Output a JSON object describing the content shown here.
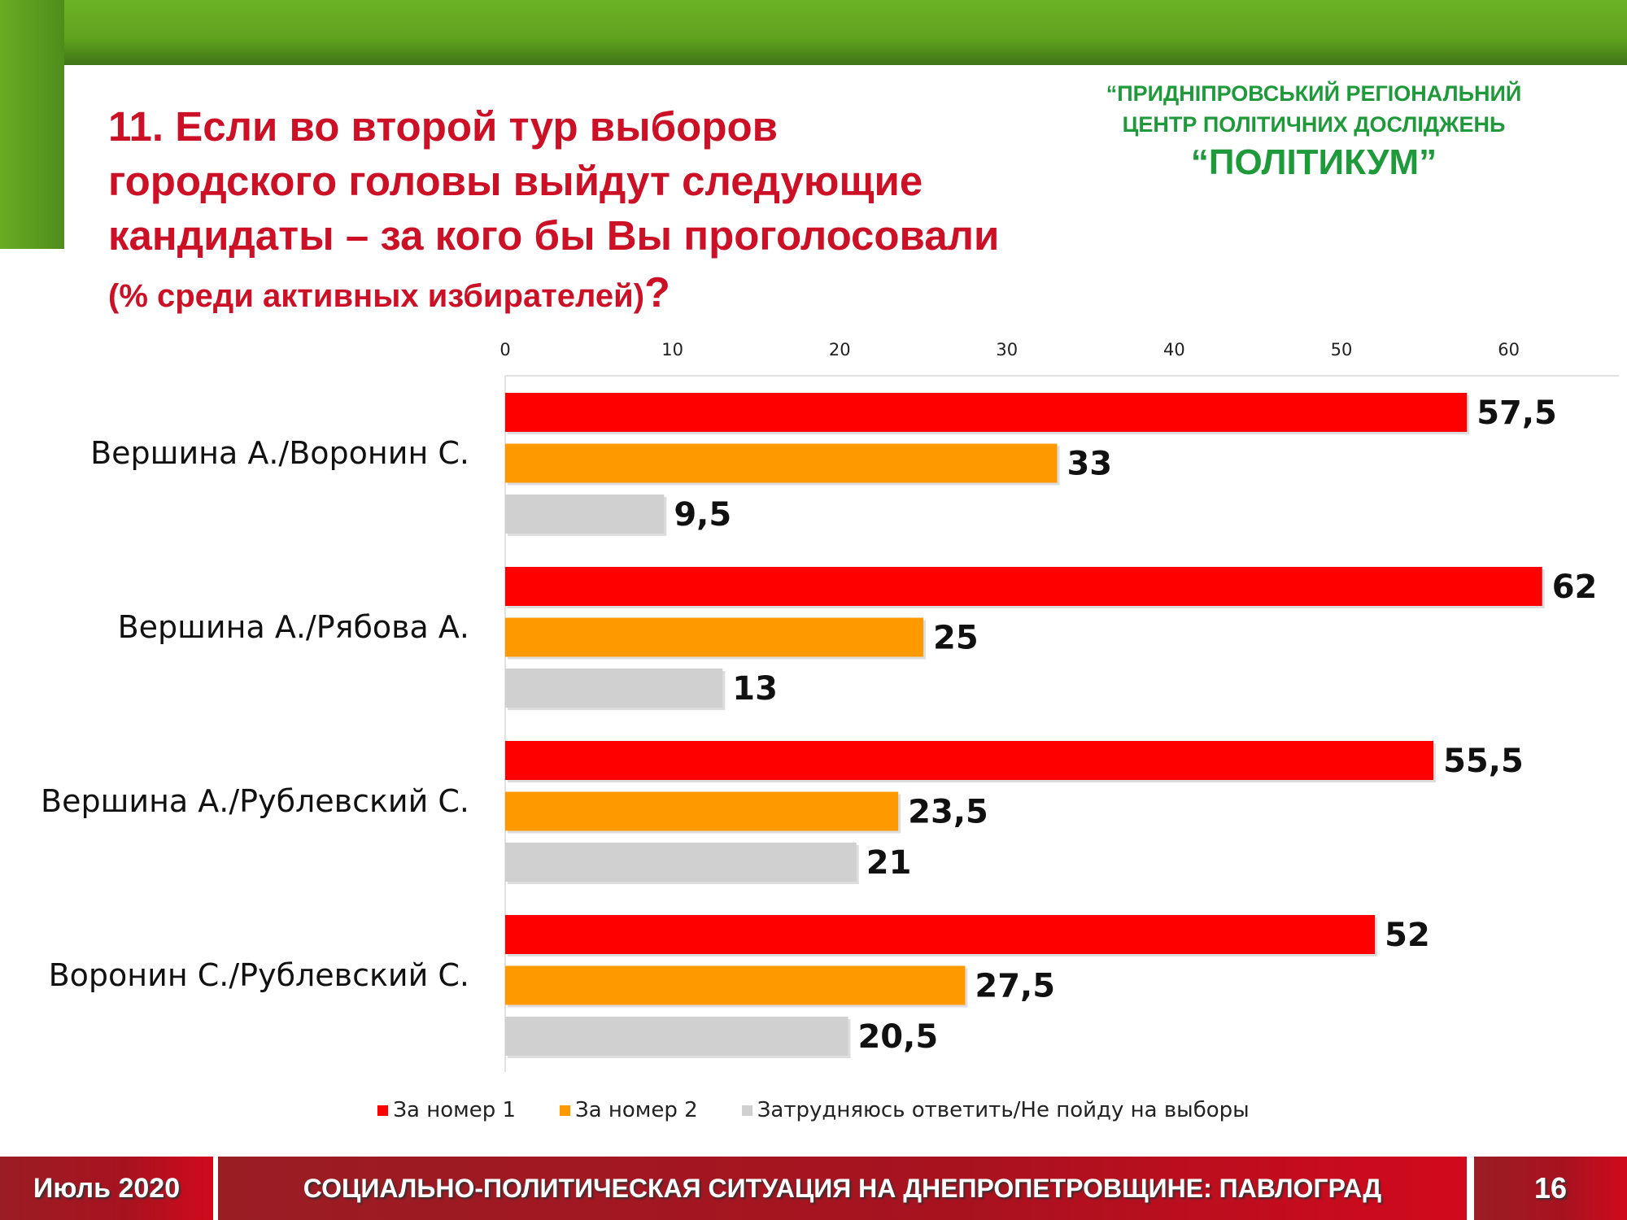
{
  "header": {
    "title_lines": [
      "11. Если во второй тур выборов",
      "городского головы выйдут следующие",
      "кандидаты – за кого бы Вы проголосовали"
    ],
    "subtitle": "(% среди активных избирателей)",
    "subtitle_mark": "?"
  },
  "org": {
    "line1": "“ПРИДНІПРОВСЬКИЙ РЕГІОНАЛЬНИЙ",
    "line2": "ЦЕНТР ПОЛІТИЧНИХ ДОСЛІДЖЕНЬ",
    "line3": "“ПОЛІТИКУМ”"
  },
  "chart_data": {
    "type": "bar",
    "orientation": "horizontal",
    "categories": [
      "Вершина А./Воронин С.",
      "Вершина А./Рябова А.",
      "Вершина А./Рублевский С.",
      "Воронин С./Рублевский С."
    ],
    "series": [
      {
        "name": "За номер 1",
        "color": "#ff0000",
        "values": [
          57.5,
          62,
          55.5,
          52
        ],
        "labels": [
          "57,5",
          "62",
          "55,5",
          "52"
        ]
      },
      {
        "name": "За номер 2",
        "color": "#ff9900",
        "values": [
          33,
          25,
          23.5,
          27.5
        ],
        "labels": [
          "33",
          "25",
          "23,5",
          "27,5"
        ]
      },
      {
        "name": "Затрудняюсь ответить/Не пойду на выборы",
        "color": "#d0d0d0",
        "values": [
          9.5,
          13,
          21,
          20.5
        ],
        "labels": [
          "9,5",
          "13",
          "21",
          "20,5"
        ]
      }
    ],
    "xlim": [
      0,
      65
    ],
    "xticks": [
      "0",
      "10",
      "20",
      "30",
      "40",
      "50",
      "60"
    ],
    "xtick_values": [
      0,
      10,
      20,
      30,
      40,
      50,
      60
    ],
    "legend": "bottom",
    "grid": false
  },
  "footer": {
    "date": "Июль 2020",
    "title": "СОЦИАЛЬНО-ПОЛИТИЧЕСКАЯ СИТУАЦИЯ НА ДНЕПРОПЕТРОВЩИНЕ: ПАВЛОГРАД",
    "page": "16"
  }
}
